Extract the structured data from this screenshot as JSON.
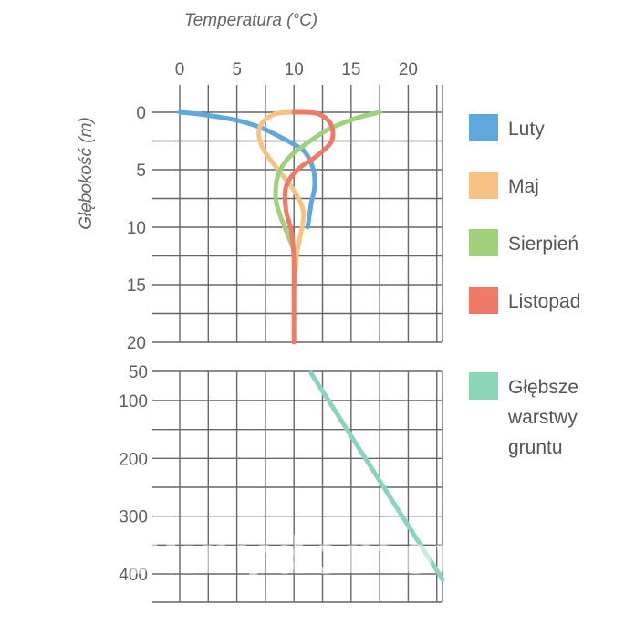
{
  "chart_data": {
    "type": "line",
    "title": "",
    "xlabel": "Temperatura (°C)",
    "ylabel": "Głębokość (m)",
    "x_ticks": [
      "0",
      "5",
      "10",
      "15",
      "20"
    ],
    "xlim": [
      0,
      23
    ],
    "upper_panel": {
      "ylim": [
        0,
        20
      ],
      "y_ticks": [
        "0",
        "5",
        "10",
        "15",
        "20"
      ],
      "series": [
        {
          "name": "Luty",
          "color": "#5fa8dc",
          "points": [
            [
              0,
              0
            ],
            [
              2,
              0.2
            ],
            [
              5,
              0.7
            ],
            [
              7,
              1.3
            ],
            [
              8.5,
              2
            ],
            [
              10,
              2.8
            ],
            [
              11,
              3.5
            ],
            [
              11.7,
              5
            ],
            [
              11.8,
              6.5
            ],
            [
              11.5,
              8
            ],
            [
              11.2,
              10
            ]
          ]
        },
        {
          "name": "Maj",
          "color": "#f6c383",
          "points": [
            [
              10,
              0
            ],
            [
              8.2,
              0.2
            ],
            [
              7,
              1.3
            ],
            [
              7.2,
              3
            ],
            [
              8.6,
              5
            ],
            [
              10,
              6.8
            ],
            [
              10.8,
              8.5
            ],
            [
              10.7,
              10
            ],
            [
              10.3,
              12
            ],
            [
              10.1,
              14
            ],
            [
              10,
              15.5
            ]
          ]
        },
        {
          "name": "Sierpień",
          "color": "#9fd07c",
          "points": [
            [
              17.5,
              0
            ],
            [
              15.5,
              0.5
            ],
            [
              13,
              1.5
            ],
            [
              11,
              2.8
            ],
            [
              9.5,
              4
            ],
            [
              8.6,
              5.5
            ],
            [
              8.4,
              7.5
            ],
            [
              8.8,
              9
            ],
            [
              9.4,
              10.5
            ],
            [
              10,
              12
            ]
          ]
        },
        {
          "name": "Listopad",
          "color": "#ef7a68",
          "points": [
            [
              10,
              0
            ],
            [
              12,
              0.1
            ],
            [
              13.2,
              1
            ],
            [
              13.3,
              2.5
            ],
            [
              12,
              3.8
            ],
            [
              10.3,
              5
            ],
            [
              9.3,
              6.5
            ],
            [
              9.3,
              8.5
            ],
            [
              9.8,
              10.5
            ],
            [
              10,
              13
            ],
            [
              10,
              16
            ],
            [
              10,
              20
            ]
          ]
        }
      ]
    },
    "lower_panel": {
      "y_ticks": [
        "50",
        "100",
        "200",
        "300",
        "400"
      ],
      "series": [
        {
          "name": "Głębsze warstwy gruntu",
          "color": "#8cd6b8",
          "points": [
            [
              11.5,
              50
            ],
            [
              23,
              410
            ]
          ]
        }
      ]
    },
    "legend": [
      {
        "label": "Luty",
        "color": "#5fa8dc"
      },
      {
        "label": "Maj",
        "color": "#f6c383"
      },
      {
        "label": "Sierpień",
        "color": "#9fd07c"
      },
      {
        "label": "Listopad",
        "color": "#ef7a68"
      },
      {
        "label_lines": [
          "Głębsze",
          "warstwy",
          "gruntu"
        ],
        "color": "#8cd6b8"
      }
    ],
    "grid": true
  },
  "watermark": "wedlinydomowe.pl"
}
